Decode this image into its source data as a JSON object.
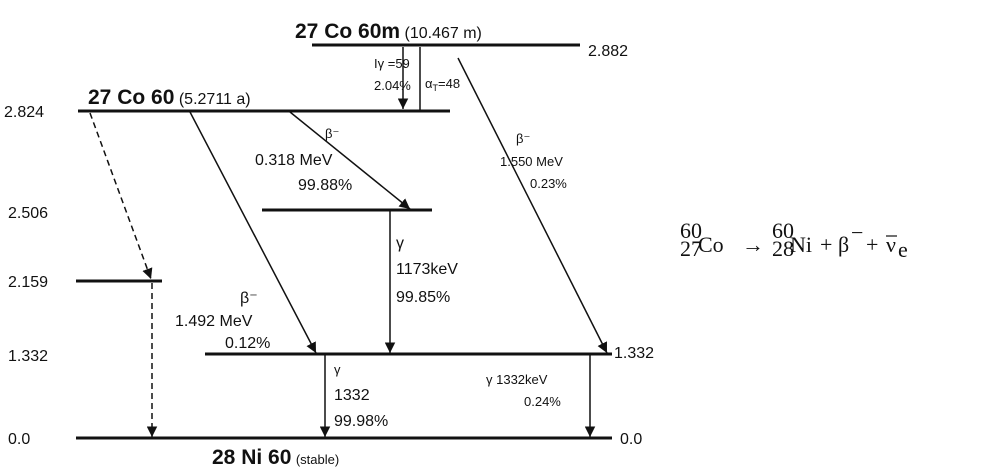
{
  "parents": [
    {
      "name": "27 Co 60m",
      "half_life": "(10.467 m)"
    },
    {
      "name": "27 Co 60",
      "half_life": "(5.2711 a)"
    }
  ],
  "daughter": {
    "name": "28 Ni 60",
    "note": "(stable)"
  },
  "levels_left": [
    "2.824",
    "2.506",
    "2.159",
    "1.332",
    "0.0"
  ],
  "levels_right": [
    "2.882",
    "1.332",
    "0.0"
  ],
  "transitions": {
    "it_gamma": {
      "intensity": "Iγ =59",
      "branch": "2.04%"
    },
    "it_alpha": {
      "symbol": "α",
      "subscript": "T",
      "value": "=48"
    },
    "beta_318": {
      "particle": "β⁻",
      "energy": "0.318 MeV",
      "branch": "99.88%"
    },
    "beta_1550": {
      "particle": "β⁻",
      "energy": "1.550 MeV",
      "branch": "0.23%"
    },
    "beta_1492": {
      "particle": "β⁻",
      "energy": "1.492 MeV",
      "branch": "0.12%"
    },
    "gamma_1173": {
      "particle": "γ",
      "energy": "1173keV",
      "branch": "99.85%"
    },
    "gamma_1332": {
      "particle": "γ",
      "energy": "1332",
      "branch": "99.98%"
    },
    "gamma_1332_m": {
      "label": "γ 1332keV",
      "branch": "0.24%"
    }
  },
  "equation": {
    "parent_mass": "60",
    "parent_z": "27",
    "parent": "Co",
    "arrow": "→",
    "daughter_mass": "60",
    "daughter_z": "28",
    "daughter": "Ni",
    "plus1": "+",
    "beta": "β",
    "beta_charge": "−",
    "plus2": "+",
    "neutrino": "ν",
    "neutrino_sub": "e"
  }
}
